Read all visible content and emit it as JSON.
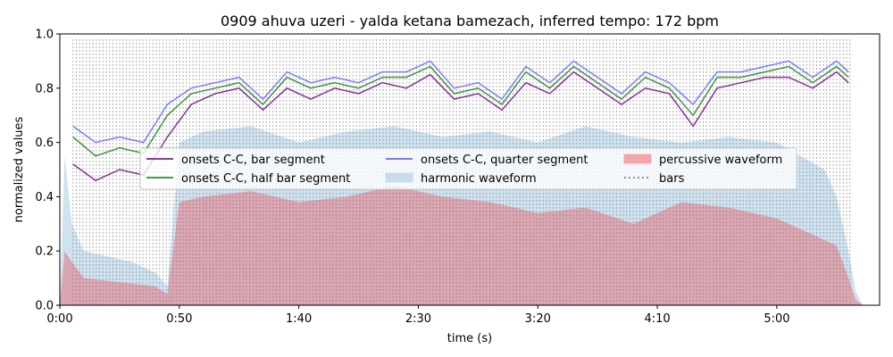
{
  "chart_data": {
    "type": "line",
    "title": "0909 ahuva uzeri - yalda ketana bamezach, inferred tempo: 172 bpm",
    "xlabel": "time (s)",
    "ylabel": "normalized values",
    "xlim": [
      0,
      343
    ],
    "ylim": [
      0,
      1.0
    ],
    "x_ticks": [
      0,
      50,
      100,
      150,
      200,
      250,
      300
    ],
    "x_tick_labels": [
      "0:00",
      "0:50",
      "1:40",
      "2:30",
      "3:20",
      "4:10",
      "5:00"
    ],
    "y_ticks": [
      0.0,
      0.2,
      0.4,
      0.6,
      0.8,
      1.0
    ],
    "y_tick_labels": [
      "0.0",
      "0.2",
      "0.4",
      "0.6",
      "0.8",
      "1.0"
    ],
    "legend_position": "center",
    "bar_lines": {
      "start": 5.5,
      "end": 331,
      "interval": 1.3953,
      "style": "dotted",
      "color": "#808080"
    },
    "series": [
      {
        "name": "onsets C-C, bar segment",
        "kind": "line",
        "color": "#7b1f8c",
        "x": [
          5.5,
          15,
          25,
          35,
          45,
          55,
          65,
          75,
          85,
          95,
          105,
          115,
          125,
          135,
          145,
          155,
          165,
          175,
          185,
          195,
          205,
          215,
          225,
          235,
          245,
          255,
          265,
          275,
          285,
          295,
          305,
          315,
          325,
          330
        ],
        "values": [
          0.52,
          0.46,
          0.5,
          0.48,
          0.62,
          0.74,
          0.78,
          0.8,
          0.72,
          0.8,
          0.76,
          0.8,
          0.78,
          0.82,
          0.8,
          0.85,
          0.76,
          0.78,
          0.72,
          0.82,
          0.78,
          0.86,
          0.8,
          0.74,
          0.8,
          0.78,
          0.66,
          0.8,
          0.82,
          0.84,
          0.84,
          0.8,
          0.86,
          0.82
        ]
      },
      {
        "name": "onsets C-C, half bar segment",
        "kind": "line",
        "color": "#2e8b2e",
        "x": [
          5.5,
          15,
          25,
          35,
          45,
          55,
          65,
          75,
          85,
          95,
          105,
          115,
          125,
          135,
          145,
          155,
          165,
          175,
          185,
          195,
          205,
          215,
          225,
          235,
          245,
          255,
          265,
          275,
          285,
          295,
          305,
          315,
          325,
          330
        ],
        "values": [
          0.62,
          0.55,
          0.58,
          0.56,
          0.7,
          0.78,
          0.8,
          0.82,
          0.74,
          0.84,
          0.8,
          0.82,
          0.8,
          0.84,
          0.84,
          0.88,
          0.78,
          0.8,
          0.74,
          0.86,
          0.8,
          0.88,
          0.82,
          0.76,
          0.84,
          0.8,
          0.7,
          0.84,
          0.84,
          0.86,
          0.88,
          0.82,
          0.88,
          0.84
        ]
      },
      {
        "name": "onsets C-C, quarter segment",
        "kind": "line",
        "color": "#5555ee",
        "x": [
          5.5,
          15,
          25,
          35,
          45,
          55,
          65,
          75,
          85,
          95,
          105,
          115,
          125,
          135,
          145,
          155,
          165,
          175,
          185,
          195,
          205,
          215,
          225,
          235,
          245,
          255,
          265,
          275,
          285,
          295,
          305,
          315,
          325,
          330
        ],
        "values": [
          0.66,
          0.6,
          0.62,
          0.6,
          0.74,
          0.8,
          0.82,
          0.84,
          0.76,
          0.86,
          0.82,
          0.84,
          0.82,
          0.86,
          0.86,
          0.9,
          0.8,
          0.82,
          0.76,
          0.88,
          0.82,
          0.9,
          0.84,
          0.78,
          0.86,
          0.82,
          0.74,
          0.86,
          0.86,
          0.88,
          0.9,
          0.84,
          0.9,
          0.86
        ]
      },
      {
        "name": "harmonic waveform",
        "kind": "area",
        "color": "#a6cbe3",
        "x": [
          0,
          2,
          5,
          10,
          20,
          30,
          40,
          45,
          50,
          60,
          80,
          100,
          120,
          140,
          160,
          180,
          200,
          220,
          240,
          260,
          280,
          300,
          320,
          325,
          330,
          333,
          336
        ],
        "values": [
          0.0,
          0.55,
          0.3,
          0.2,
          0.18,
          0.16,
          0.12,
          0.07,
          0.6,
          0.64,
          0.66,
          0.6,
          0.64,
          0.66,
          0.62,
          0.64,
          0.6,
          0.66,
          0.62,
          0.6,
          0.62,
          0.6,
          0.5,
          0.4,
          0.2,
          0.05,
          0.0
        ]
      },
      {
        "name": "percussive waveform",
        "kind": "area",
        "color": "#e8737f",
        "x": [
          0,
          2,
          5,
          10,
          20,
          30,
          40,
          45,
          50,
          60,
          80,
          100,
          120,
          140,
          160,
          180,
          200,
          220,
          240,
          260,
          280,
          300,
          320,
          325,
          330,
          333,
          336
        ],
        "values": [
          0.0,
          0.2,
          0.16,
          0.1,
          0.09,
          0.08,
          0.07,
          0.04,
          0.38,
          0.4,
          0.42,
          0.38,
          0.4,
          0.44,
          0.4,
          0.38,
          0.34,
          0.36,
          0.3,
          0.38,
          0.36,
          0.32,
          0.24,
          0.22,
          0.1,
          0.02,
          0.0
        ]
      }
    ],
    "legend": [
      {
        "label": "onsets C-C, bar segment",
        "marker": "line",
        "color": "#7b1f8c"
      },
      {
        "label": "onsets C-C, quarter segment",
        "marker": "line",
        "color": "#6a6af0"
      },
      {
        "label": "percussive waveform",
        "marker": "patch",
        "color": "#f4a6ab"
      },
      {
        "label": "onsets C-C, half bar segment",
        "marker": "line",
        "color": "#2e8b2e"
      },
      {
        "label": "harmonic waveform",
        "marker": "patch",
        "color": "#c9dcec"
      },
      {
        "label": "bars",
        "marker": "dotted",
        "color": "#808080"
      }
    ]
  }
}
